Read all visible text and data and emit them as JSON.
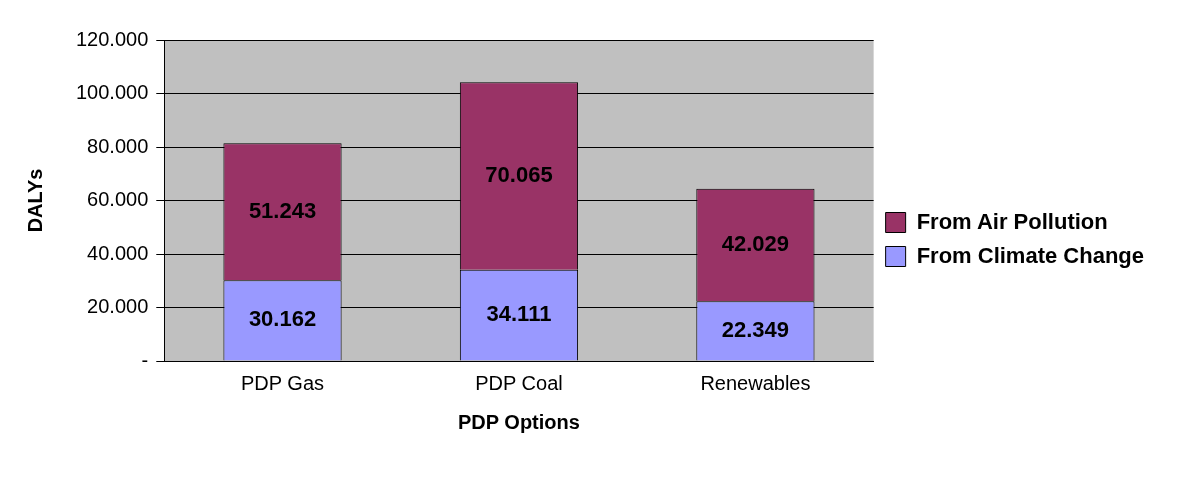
{
  "chart_data": {
    "type": "bar",
    "stacked": true,
    "xlabel": "PDP Options",
    "ylabel": "DALYs",
    "categories": [
      "PDP Gas",
      "PDP Coal",
      "Renewables"
    ],
    "series": [
      {
        "name": "From Climate Change",
        "color": "#9999ff",
        "values": [
          30.162,
          34.111,
          22.349
        ]
      },
      {
        "name": "From Air Pollution",
        "color": "#993366",
        "values": [
          51.243,
          70.065,
          42.029
        ]
      }
    ],
    "ylim": [
      0,
      120
    ],
    "yticks": [
      {
        "value": 0,
        "label": "-"
      },
      {
        "value": 20,
        "label": "20.000"
      },
      {
        "value": 40,
        "label": "40.000"
      },
      {
        "value": 60,
        "label": "60.000"
      },
      {
        "value": 80,
        "label": "80.000"
      },
      {
        "value": 100,
        "label": "100.000"
      },
      {
        "value": 120,
        "label": "120.000"
      }
    ],
    "grid": "y",
    "legend": "right",
    "data_labels": true
  }
}
